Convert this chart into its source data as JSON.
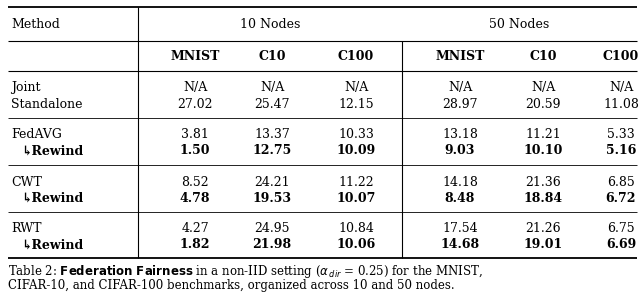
{
  "background_color": "#ffffff",
  "fontsize": 9.0,
  "caption_fontsize": 8.5,
  "col_headers_top": [
    "Method",
    "10 Nodes",
    "50 Nodes"
  ],
  "col_headers_sub": [
    "MNIST",
    "C10",
    "C100",
    "MNIST",
    "C10",
    "C100"
  ],
  "rows": [
    {
      "method": "Joint",
      "rewind": false,
      "vals": [
        "N/A",
        "N/A",
        "N/A",
        "N/A",
        "N/A",
        "N/A"
      ]
    },
    {
      "method": "Standalone",
      "rewind": false,
      "vals": [
        "27.02",
        "25.47",
        "12.15",
        "28.97",
        "20.59",
        "11.08"
      ]
    },
    {
      "method": "FedAVG",
      "rewind": false,
      "vals": [
        "3.81",
        "13.37",
        "10.33",
        "13.18",
        "11.21",
        "5.33"
      ]
    },
    {
      "method": "↳Rewind",
      "rewind": true,
      "vals": [
        "1.50",
        "12.75",
        "10.09",
        "9.03",
        "10.10",
        "5.16"
      ]
    },
    {
      "method": "CWT",
      "rewind": false,
      "vals": [
        "8.52",
        "24.21",
        "11.22",
        "14.18",
        "21.36",
        "6.85"
      ]
    },
    {
      "method": "↳Rewind",
      "rewind": true,
      "vals": [
        "4.78",
        "19.53",
        "10.07",
        "8.48",
        "18.84",
        "6.72"
      ]
    },
    {
      "method": "RWT",
      "rewind": false,
      "vals": [
        "4.27",
        "24.95",
        "10.84",
        "17.54",
        "21.26",
        "6.75"
      ]
    },
    {
      "method": "↳Rewind",
      "rewind": true,
      "vals": [
        "1.82",
        "21.98",
        "10.06",
        "14.68",
        "19.01",
        "6.69"
      ]
    }
  ],
  "caption_normal1": "Table 2: ",
  "caption_bold": "Federation Fairness",
  "caption_normal2": " in a non-IID setting (",
  "caption_alpha": "α",
  "caption_sub": "dir",
  "caption_normal3": " = 0.25) for the MNIST,",
  "caption_line2": "CIFAR-10, and CIFAR-100 benchmarks, organized across 10 and 50 nodes."
}
